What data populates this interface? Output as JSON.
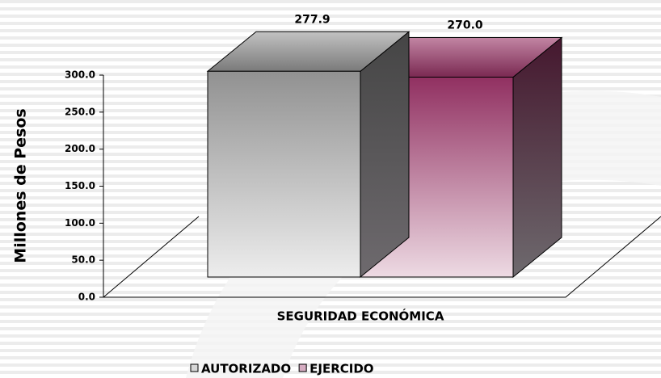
{
  "chart_data": {
    "type": "bar3d",
    "y_label": "Millones de Pesos",
    "categories": [
      "SEGURIDAD ECONÓMICA"
    ],
    "series": [
      {
        "name": "AUTORIZADO",
        "color": "#999999",
        "values": [
          277.9
        ],
        "value_labels": [
          "277.9"
        ]
      },
      {
        "name": "EJERCIDO",
        "color": "#993366",
        "values": [
          270.0
        ],
        "value_labels": [
          "270.0"
        ]
      }
    ],
    "ylim": [
      0,
      300
    ],
    "yticks": [
      {
        "value": 0,
        "label": "0.0"
      },
      {
        "value": 50,
        "label": "50.0"
      },
      {
        "value": 100,
        "label": "100.0"
      },
      {
        "value": 150,
        "label": "150.0"
      },
      {
        "value": 200,
        "label": "200.0"
      },
      {
        "value": 250,
        "label": "250.0"
      },
      {
        "value": 300,
        "label": "300.0"
      }
    ],
    "legend": "bottom"
  }
}
